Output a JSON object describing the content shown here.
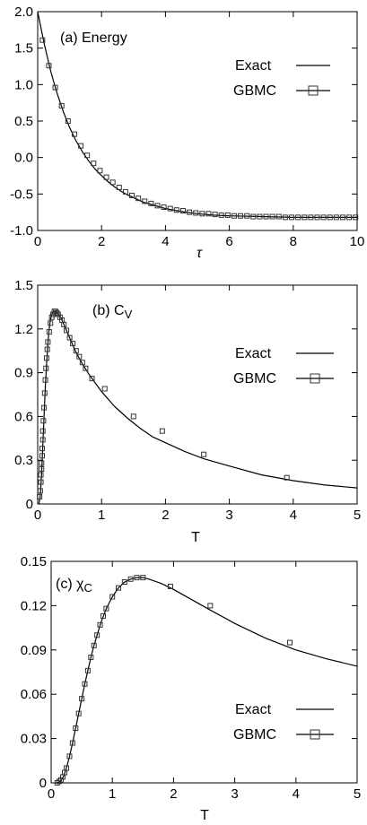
{
  "chart_data": [
    {
      "type": "line",
      "panel_label": "(a) Energy",
      "xlabel": "τ",
      "ylabel": "",
      "xlim": [
        0,
        10
      ],
      "ylim": [
        -1.0,
        2.0
      ],
      "xticks": [
        0,
        2,
        4,
        6,
        8,
        10
      ],
      "xtick_labels": [
        "0",
        "2",
        "4",
        "6",
        "8",
        "10"
      ],
      "yticks": [
        -1.0,
        -0.5,
        0.0,
        0.5,
        1.0,
        1.5,
        2.0
      ],
      "ytick_labels": [
        "-1.0",
        "-0.5",
        "0.0",
        "0.5",
        "1.0",
        "1.5",
        "2.0"
      ],
      "legend": [
        "Exact",
        "GBMC"
      ],
      "legend_position": "upper-right",
      "series": [
        {
          "name": "Exact",
          "style": "line",
          "x": [
            0,
            0.1,
            0.2,
            0.3,
            0.4,
            0.5,
            0.6,
            0.8,
            1.0,
            1.2,
            1.4,
            1.6,
            1.8,
            2.0,
            2.2,
            2.4,
            2.6,
            2.8,
            3.0,
            3.3,
            3.6,
            4.0,
            4.5,
            5.0,
            5.5,
            6.0,
            7.0,
            8.0,
            9.0,
            10.0
          ],
          "y": [
            2.0,
            1.78,
            1.57,
            1.38,
            1.2,
            1.04,
            0.89,
            0.63,
            0.41,
            0.23,
            0.08,
            -0.05,
            -0.16,
            -0.25,
            -0.33,
            -0.4,
            -0.46,
            -0.51,
            -0.55,
            -0.61,
            -0.65,
            -0.7,
            -0.74,
            -0.77,
            -0.79,
            -0.8,
            -0.81,
            -0.82,
            -0.82,
            -0.82
          ]
        },
        {
          "name": "GBMC",
          "style": "marker",
          "x": [
            0.15,
            0.35,
            0.55,
            0.75,
            0.95,
            1.15,
            1.35,
            1.55,
            1.75,
            1.95,
            2.15,
            2.35,
            2.55,
            2.75,
            2.95,
            3.15,
            3.35,
            3.55,
            3.75,
            3.95,
            4.15,
            4.35,
            4.55,
            4.75,
            4.95,
            5.15,
            5.35,
            5.55,
            5.75,
            5.95,
            6.15,
            6.35,
            6.55,
            6.75,
            6.95,
            7.15,
            7.35,
            7.55,
            7.75,
            7.95,
            8.15,
            8.35,
            8.55,
            8.75,
            8.95,
            9.15,
            9.35,
            9.55,
            9.75,
            9.95
          ],
          "y": [
            1.61,
            1.26,
            0.96,
            0.71,
            0.5,
            0.32,
            0.16,
            0.03,
            -0.08,
            -0.18,
            -0.27,
            -0.34,
            -0.41,
            -0.47,
            -0.52,
            -0.56,
            -0.6,
            -0.63,
            -0.66,
            -0.68,
            -0.7,
            -0.72,
            -0.73,
            -0.75,
            -0.76,
            -0.77,
            -0.77,
            -0.78,
            -0.79,
            -0.79,
            -0.8,
            -0.8,
            -0.8,
            -0.81,
            -0.81,
            -0.81,
            -0.81,
            -0.81,
            -0.82,
            -0.82,
            -0.82,
            -0.82,
            -0.82,
            -0.82,
            -0.82,
            -0.82,
            -0.82,
            -0.82,
            -0.82,
            -0.82
          ]
        }
      ]
    },
    {
      "type": "line",
      "panel_label": "(b) C",
      "panel_label_sub": "V",
      "xlabel": "T",
      "ylabel": "",
      "xlim": [
        0,
        5
      ],
      "ylim": [
        0,
        1.5
      ],
      "xticks": [
        0,
        1,
        2,
        3,
        4,
        5
      ],
      "xtick_labels": [
        "0",
        "1",
        "2",
        "3",
        "4",
        "5"
      ],
      "yticks": [
        0,
        0.3,
        0.6,
        0.9,
        1.2,
        1.5
      ],
      "ytick_labels": [
        "0",
        "0.3",
        "0.6",
        "0.9",
        "1.2",
        "1.5"
      ],
      "legend": [
        "Exact",
        "GBMC"
      ],
      "legend_position": "right",
      "series": [
        {
          "name": "Exact",
          "style": "line",
          "x": [
            0.02,
            0.04,
            0.06,
            0.08,
            0.1,
            0.12,
            0.14,
            0.16,
            0.18,
            0.2,
            0.22,
            0.25,
            0.28,
            0.31,
            0.34,
            0.37,
            0.4,
            0.45,
            0.5,
            0.6,
            0.7,
            0.8,
            1.0,
            1.2,
            1.4,
            1.6,
            1.8,
            2.0,
            2.3,
            2.6,
            3.0,
            3.5,
            4.0,
            4.5,
            5.0
          ],
          "y": [
            0.0,
            0.05,
            0.2,
            0.4,
            0.6,
            0.8,
            0.97,
            1.1,
            1.2,
            1.26,
            1.3,
            1.32,
            1.32,
            1.31,
            1.29,
            1.27,
            1.24,
            1.19,
            1.14,
            1.04,
            0.96,
            0.89,
            0.77,
            0.67,
            0.59,
            0.52,
            0.46,
            0.42,
            0.36,
            0.31,
            0.26,
            0.2,
            0.16,
            0.13,
            0.11
          ]
        },
        {
          "name": "GBMC",
          "style": "marker",
          "x": [
            0.03,
            0.04,
            0.05,
            0.05,
            0.06,
            0.06,
            0.07,
            0.07,
            0.08,
            0.08,
            0.09,
            0.1,
            0.11,
            0.12,
            0.13,
            0.14,
            0.15,
            0.16,
            0.18,
            0.2,
            0.22,
            0.24,
            0.26,
            0.28,
            0.3,
            0.32,
            0.35,
            0.38,
            0.41,
            0.45,
            0.5,
            0.55,
            0.6,
            0.65,
            0.7,
            0.75,
            0.85,
            1.05,
            1.5,
            1.95,
            2.6,
            3.9
          ],
          "y": [
            0.05,
            0.09,
            0.15,
            0.2,
            0.24,
            0.28,
            0.33,
            0.38,
            0.44,
            0.5,
            0.57,
            0.66,
            0.76,
            0.85,
            0.93,
            1.0,
            1.06,
            1.11,
            1.18,
            1.24,
            1.28,
            1.3,
            1.32,
            1.32,
            1.31,
            1.3,
            1.28,
            1.26,
            1.23,
            1.19,
            1.14,
            1.1,
            1.05,
            1.01,
            0.97,
            0.93,
            0.86,
            0.79,
            0.6,
            0.5,
            0.34,
            0.18
          ]
        }
      ]
    },
    {
      "type": "line",
      "panel_label": "(c) χ",
      "panel_label_sub": "C",
      "xlabel": "T",
      "ylabel": "",
      "xlim": [
        0,
        5
      ],
      "ylim": [
        0,
        0.15
      ],
      "xticks": [
        0,
        1,
        2,
        3,
        4,
        5
      ],
      "xtick_labels": [
        "0",
        "1",
        "2",
        "3",
        "4",
        "5"
      ],
      "yticks": [
        0,
        0.03,
        0.06,
        0.09,
        0.12,
        0.15
      ],
      "ytick_labels": [
        "0",
        "0.03",
        "0.06",
        "0.09",
        "0.12",
        "0.15"
      ],
      "legend": [
        "Exact",
        "GBMC"
      ],
      "legend_position": "lower-right",
      "series": [
        {
          "name": "Exact",
          "style": "line",
          "x": [
            0.05,
            0.1,
            0.15,
            0.2,
            0.25,
            0.3,
            0.35,
            0.4,
            0.45,
            0.5,
            0.55,
            0.6,
            0.65,
            0.7,
            0.75,
            0.8,
            0.9,
            1.0,
            1.1,
            1.2,
            1.3,
            1.4,
            1.5,
            1.6,
            1.8,
            2.0,
            2.3,
            2.6,
            3.0,
            3.5,
            4.0,
            4.5,
            5.0
          ],
          "y": [
            0.0,
            0.0,
            0.001,
            0.004,
            0.01,
            0.018,
            0.027,
            0.037,
            0.047,
            0.057,
            0.067,
            0.076,
            0.085,
            0.093,
            0.1,
            0.107,
            0.118,
            0.126,
            0.132,
            0.136,
            0.138,
            0.139,
            0.139,
            0.138,
            0.135,
            0.131,
            0.124,
            0.117,
            0.108,
            0.098,
            0.09,
            0.084,
            0.079
          ]
        },
        {
          "name": "GBMC",
          "style": "marker",
          "x": [
            0.1,
            0.13,
            0.16,
            0.19,
            0.22,
            0.25,
            0.3,
            0.35,
            0.4,
            0.45,
            0.5,
            0.55,
            0.6,
            0.65,
            0.7,
            0.75,
            0.8,
            0.85,
            0.9,
            1.0,
            1.1,
            1.2,
            1.3,
            1.4,
            1.5,
            1.95,
            2.6,
            3.9
          ],
          "y": [
            0.0,
            0.001,
            0.002,
            0.004,
            0.007,
            0.01,
            0.018,
            0.027,
            0.037,
            0.047,
            0.057,
            0.067,
            0.076,
            0.085,
            0.093,
            0.1,
            0.107,
            0.113,
            0.118,
            0.126,
            0.132,
            0.136,
            0.138,
            0.139,
            0.139,
            0.133,
            0.12,
            0.095
          ]
        }
      ]
    }
  ]
}
